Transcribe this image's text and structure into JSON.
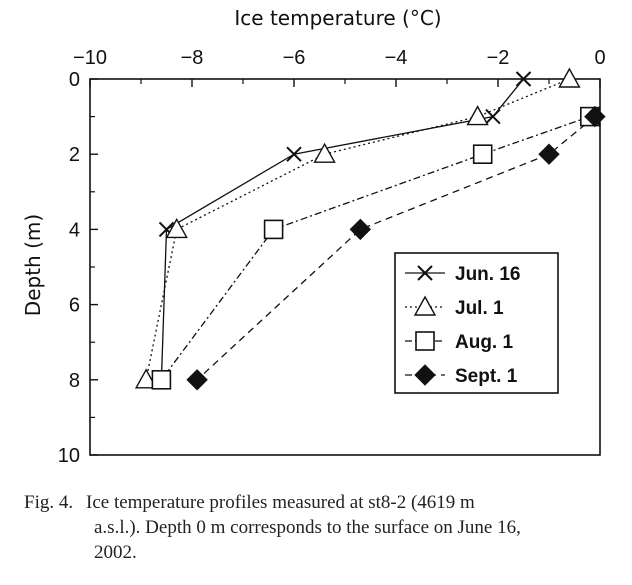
{
  "chart_data": {
    "type": "line",
    "title": "",
    "xlabel": "Ice temperature (°C)",
    "ylabel": "Depth (m)",
    "xlim": [
      -10,
      0
    ],
    "ylim": [
      10,
      0
    ],
    "x_ticks": [
      "−10",
      "−8",
      "−6",
      "−4",
      "−2",
      "0"
    ],
    "y_ticks": [
      "0",
      "2",
      "4",
      "6",
      "8",
      "10"
    ],
    "x_axis_position": "top",
    "y_axis_inverted": true,
    "grid": false,
    "legend_position": "bottom-right",
    "series": [
      {
        "name": "Jun. 16",
        "marker": "x",
        "line_style": "solid",
        "points": [
          {
            "x": -1.5,
            "y": 0
          },
          {
            "x": -2.1,
            "y": 1
          },
          {
            "x": -6.0,
            "y": 2
          },
          {
            "x": -8.5,
            "y": 4
          },
          {
            "x": -8.6,
            "y": 8
          }
        ]
      },
      {
        "name": "Jul. 1",
        "marker": "open-triangle",
        "line_style": "dotted",
        "points": [
          {
            "x": -0.6,
            "y": 0
          },
          {
            "x": -2.4,
            "y": 1
          },
          {
            "x": -5.4,
            "y": 2
          },
          {
            "x": -8.3,
            "y": 4
          },
          {
            "x": -8.9,
            "y": 8
          }
        ]
      },
      {
        "name": "Aug. 1",
        "marker": "open-square",
        "line_style": "dash-dot",
        "points": [
          {
            "x": -0.2,
            "y": 1
          },
          {
            "x": -2.3,
            "y": 2
          },
          {
            "x": -6.4,
            "y": 4
          },
          {
            "x": -8.6,
            "y": 8
          }
        ]
      },
      {
        "name": "Sept. 1",
        "marker": "filled-diamond",
        "line_style": "dashed",
        "points": [
          {
            "x": -0.1,
            "y": 1
          },
          {
            "x": -1.0,
            "y": 2
          },
          {
            "x": -4.7,
            "y": 4
          },
          {
            "x": -7.9,
            "y": 8
          }
        ]
      }
    ]
  },
  "caption": {
    "label": "Fig. 4.",
    "line1": "Ice temperature profiles measured at st8-2 (4619 m",
    "line2": "a.s.l.). Depth 0 m corresponds to the surface on June 16,",
    "line3": "2002."
  },
  "colors": {
    "ink": "#111111",
    "background": "#ffffff"
  }
}
